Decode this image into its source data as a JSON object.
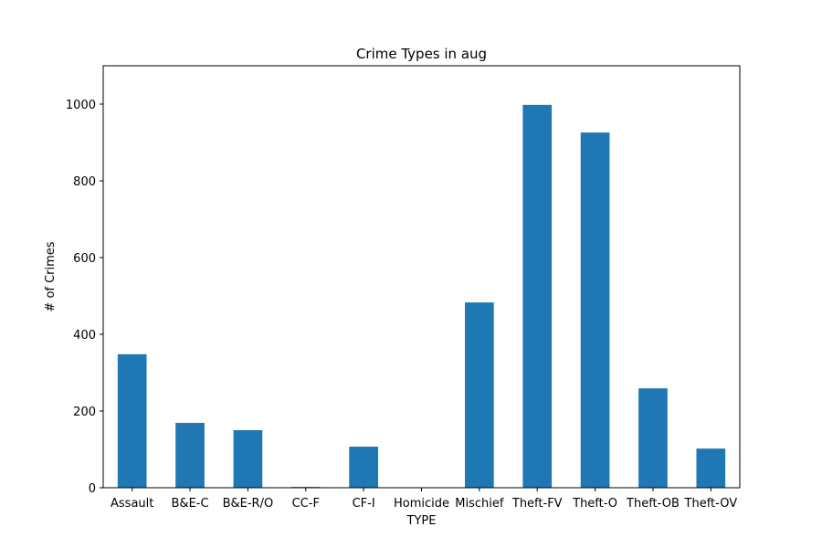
{
  "chart_data": {
    "type": "bar",
    "title": "Crime Types in aug",
    "xlabel": "TYPE",
    "ylabel": "# of Crimes",
    "categories": [
      "Assault",
      "B&E-C",
      "B&E-R/O",
      "CC-F",
      "CF-I",
      "Homicide",
      "Mischief",
      "Theft-FV",
      "Theft-O",
      "Theft-OB",
      "Theft-OV"
    ],
    "values": [
      348,
      169,
      150,
      2,
      107,
      0,
      483,
      998,
      926,
      259,
      102
    ],
    "ylim": [
      0,
      1100
    ],
    "yticks": [
      0,
      200,
      400,
      600,
      800,
      1000
    ],
    "bar_color": "#1f77b4",
    "grid": false,
    "legend": "none"
  }
}
